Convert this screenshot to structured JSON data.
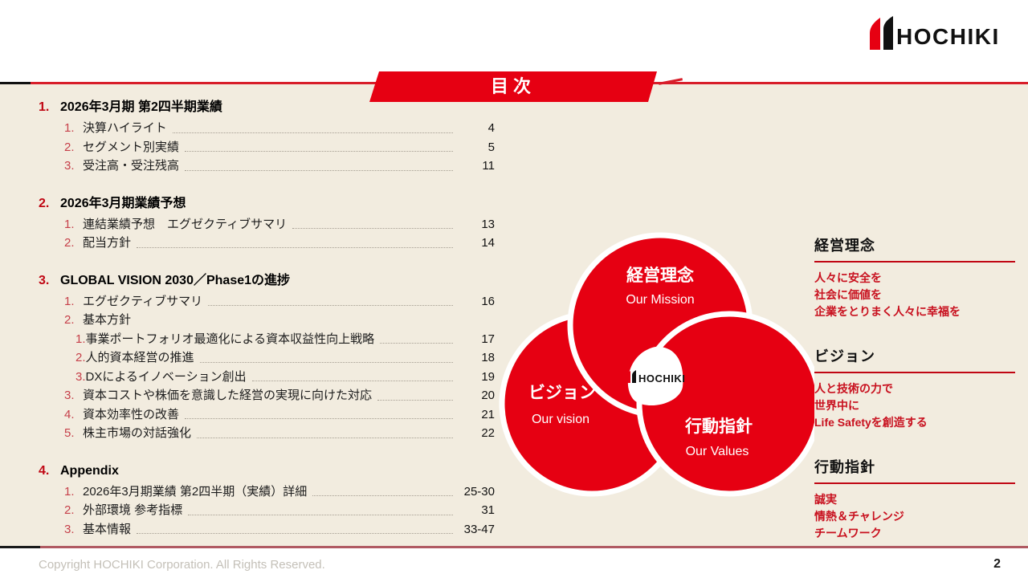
{
  "colors": {
    "brand_red": "#e60012",
    "accent_red": "#c00613",
    "cream_bg": "#f2ecdf",
    "top_rule_red": "#d81e2a",
    "footer_rule": "#b05a62"
  },
  "brand": {
    "logo_text": "HOCHIKI"
  },
  "header": {
    "title": "目次"
  },
  "toc": {
    "sections": [
      {
        "number": "1.",
        "title": "2026年3月期 第2四半期業績",
        "items": [
          {
            "number": "1.",
            "label": "決算ハイライト",
            "page": "4",
            "level": 1
          },
          {
            "number": "2.",
            "label": "セグメント別実績",
            "page": "5",
            "level": 1
          },
          {
            "number": "3.",
            "label": "受注高・受注残高",
            "page": "11",
            "level": 1
          }
        ]
      },
      {
        "number": "2.",
        "title": "2026年3月期業績予想",
        "items": [
          {
            "number": "1.",
            "label": "連結業績予想　エグゼクティブサマリ",
            "page": "13",
            "level": 1
          },
          {
            "number": "2.",
            "label": "配当方針",
            "page": "14",
            "level": 1
          }
        ]
      },
      {
        "number": "3.",
        "title": "GLOBAL VISION 2030／Phase1の進捗",
        "items": [
          {
            "number": "1.",
            "label": "エグゼクティブサマリ",
            "page": "16",
            "level": 1
          },
          {
            "number": "2.",
            "label": "基本方針",
            "page": "",
            "level": 1
          },
          {
            "number": "1.",
            "label": "事業ポートフォリオ最適化による資本収益性向上戦略",
            "page": "17",
            "level": 2
          },
          {
            "number": "2.",
            "label": "人的資本経営の推進",
            "page": "18",
            "level": 2
          },
          {
            "number": "3.",
            "label": "DXによるイノベーション創出",
            "page": "19",
            "level": 2
          },
          {
            "number": "3.",
            "label": "資本コストや株価を意識した経営の実現に向けた対応",
            "page": "20",
            "level": 1
          },
          {
            "number": "4.",
            "label": "資本効率性の改善",
            "page": "21",
            "level": 1
          },
          {
            "number": "5.",
            "label": "株主市場の対話強化",
            "page": "22",
            "level": 1
          }
        ]
      },
      {
        "number": "4.",
        "title": "Appendix",
        "items": [
          {
            "number": "1.",
            "label": "2026年3月期業績 第2四半期（実績）詳細",
            "page": "25-30",
            "level": 1
          },
          {
            "number": "2.",
            "label": "外部環境 参考指標",
            "page": "31",
            "level": 1
          },
          {
            "number": "3.",
            "label": "基本情報",
            "page": "33-47",
            "level": 1
          }
        ]
      }
    ]
  },
  "venn": {
    "circles": [
      {
        "label": "経営理念",
        "sublabel": "Our Mission"
      },
      {
        "label": "ビジョン",
        "sublabel": "Our vision"
      },
      {
        "label": "行動指針",
        "sublabel": "Our Values"
      }
    ],
    "center_logo_text": "HOCHIKI"
  },
  "panel": {
    "blocks": [
      {
        "heading": "経営理念",
        "lines": [
          "人々に安全を",
          "社会に価値を",
          "企業をとりまく人々に幸福を"
        ]
      },
      {
        "heading": "ビジョン",
        "lines": [
          "人と技術の力で",
          "世界中に",
          "Life Safetyを創造する"
        ]
      },
      {
        "heading": "行動指針",
        "lines": [
          "誠実",
          "情熱＆チャレンジ",
          "チームワーク"
        ]
      }
    ]
  },
  "footer": {
    "copyright": "Copyright HOCHIKI Corporation. All Rights Reserved.",
    "page_number": "2"
  }
}
